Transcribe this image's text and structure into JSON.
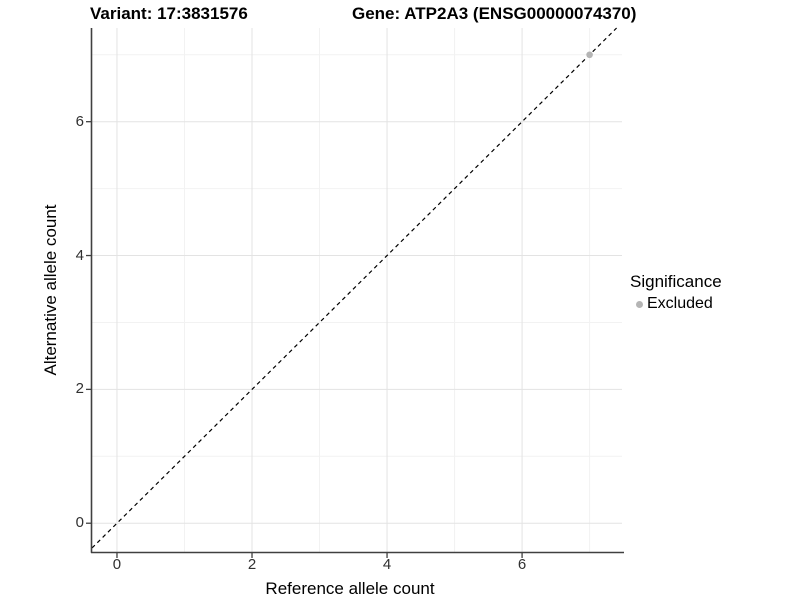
{
  "titles": {
    "variant": "Variant: 17:3831576",
    "gene": "Gene: ATP2A3 (ENSG00000074370)"
  },
  "axes": {
    "x": {
      "label": "Reference allele count",
      "ticks": [
        "0",
        "2",
        "4",
        "6"
      ]
    },
    "y": {
      "label": "Alternative allele count",
      "ticks": [
        "0",
        "2",
        "4",
        "6"
      ]
    }
  },
  "legend": {
    "title": "Significance",
    "items": [
      {
        "label": "Excluded",
        "color": "#b5b5b5"
      }
    ]
  },
  "colors": {
    "background": "#ffffff",
    "grid_major": "#e3e3e3",
    "grid_minor": "#f2f2f2",
    "axis_line": "#404040",
    "tick_mark": "#404040",
    "dashed_line": "#000000",
    "point": "#b5b5b5",
    "title_text": "#000000",
    "tick_text": "#303030"
  },
  "chart_data": {
    "type": "scatter",
    "title": "Variant: 17:3831576   Gene: ATP2A3 (ENSG00000074370)",
    "xlabel": "Reference allele count",
    "ylabel": "Alternative allele count",
    "xlim": [
      -0.37,
      7.48
    ],
    "ylim": [
      -0.43,
      7.4
    ],
    "x_ticks": [
      0,
      2,
      4,
      6
    ],
    "y_ticks": [
      0,
      2,
      4,
      6
    ],
    "grid": true,
    "legend_position": "right",
    "series": [
      {
        "name": "Excluded",
        "color": "#b5b5b5",
        "points": [
          {
            "x": 7,
            "y": 7
          }
        ]
      }
    ],
    "reference_line": {
      "equation": "y = x",
      "style": "dashed",
      "color": "#000000"
    }
  }
}
